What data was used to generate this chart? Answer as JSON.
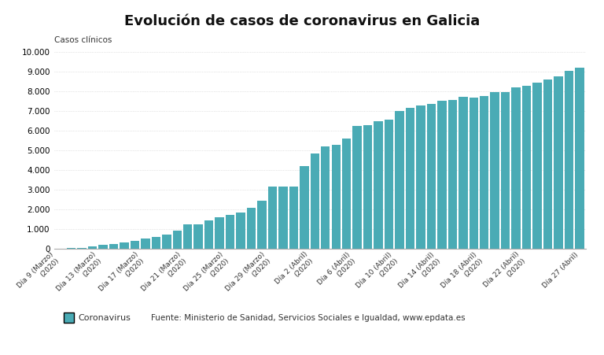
{
  "title": "Evolución de casos de coronavirus en Galicia",
  "ylabel": "Casos clínicos",
  "bar_color": "#4AABB5",
  "background_color": "#ffffff",
  "legend_label": "Coronavirus",
  "source_text": "Fuente: Ministerio de Sanidad, Servicios Sociales e Igualdad, www.epdata.es",
  "ylim": [
    0,
    10000
  ],
  "yticks": [
    0,
    1000,
    2000,
    3000,
    4000,
    5000,
    6000,
    7000,
    8000,
    9000,
    10000
  ],
  "values": [
    3,
    18,
    45,
    100,
    177,
    241,
    295,
    389,
    493,
    607,
    726,
    915,
    1208,
    1208,
    1415,
    1572,
    1700,
    1844,
    2077,
    2438,
    3144,
    3140,
    3128,
    4199,
    4837,
    5175,
    5258,
    5597,
    6211,
    6283,
    6461,
    6541,
    7004,
    7163,
    7254,
    7350,
    7512,
    7560,
    7708,
    7666,
    7741,
    7943,
    7944,
    8173,
    8251,
    8415,
    8594,
    8737,
    9009,
    9204
  ],
  "tick_labels_shown": [
    "Día 9 (Marzo)\n(2020)",
    "Día 13 (Marzo)\n(2020)",
    "Día 17 (Marzo)\n(2020)",
    "Día 21 (Marzo)\n(2020)",
    "Día 25 (Marzo)\n(2020)",
    "Día 29 (Marzo)\n(2020)",
    "Día 2 (Abril)\n(2020)",
    "Día 6 (Abril)\n(2020)",
    "Día 10 (Abril)\n(2020)",
    "Día 14 (Abril)\n(2020)",
    "Día 18 (Abril)\n(2020)",
    "Día 22 (Abril)\n(2020)",
    "Día 27 (Abril)"
  ],
  "tick_indices_shown": [
    0,
    4,
    8,
    12,
    16,
    20,
    24,
    28,
    32,
    36,
    40,
    44,
    49
  ]
}
